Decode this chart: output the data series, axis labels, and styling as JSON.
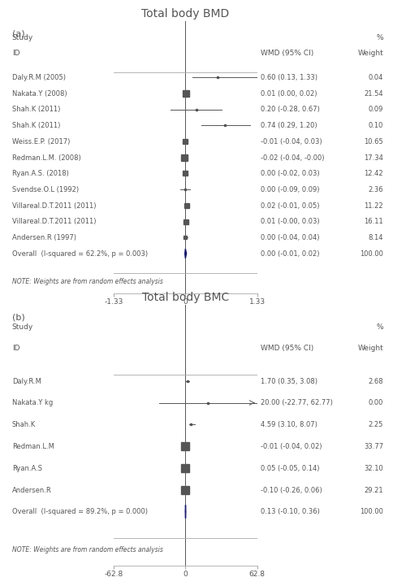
{
  "panel_a": {
    "title": "Total body BMD",
    "label": "(a)",
    "studies": [
      {
        "id": "Daly.R.M (2005)",
        "wmd": 0.6,
        "ci_lo": 0.13,
        "ci_hi": 1.33,
        "weight": 0.04,
        "ci_text": "0.60 (0.13, 1.33)",
        "wt_text": "0.04"
      },
      {
        "id": "Nakata.Y (2008)",
        "wmd": 0.01,
        "ci_lo": 0.0,
        "ci_hi": 0.02,
        "weight": 21.54,
        "ci_text": "0.01 (0.00, 0.02)",
        "wt_text": "21.54"
      },
      {
        "id": "Shah.K (2011)",
        "wmd": 0.2,
        "ci_lo": -0.28,
        "ci_hi": 0.67,
        "weight": 0.09,
        "ci_text": "0.20 (-0.28, 0.67)",
        "wt_text": "0.09"
      },
      {
        "id": "Shah.K (2011)",
        "wmd": 0.74,
        "ci_lo": 0.29,
        "ci_hi": 1.2,
        "weight": 0.1,
        "ci_text": "0.74 (0.29, 1.20)",
        "wt_text": "0.10"
      },
      {
        "id": "Weiss.E.P. (2017)",
        "wmd": -0.01,
        "ci_lo": -0.04,
        "ci_hi": 0.03,
        "weight": 10.65,
        "ci_text": "-0.01 (-0.04, 0.03)",
        "wt_text": "10.65"
      },
      {
        "id": "Redman.L.M. (2008)",
        "wmd": -0.02,
        "ci_lo": -0.04,
        "ci_hi": -0.0,
        "weight": 17.34,
        "ci_text": "-0.02 (-0.04, -0.00)",
        "wt_text": "17.34"
      },
      {
        "id": "Ryan.A.S. (2018)",
        "wmd": 0.0,
        "ci_lo": -0.02,
        "ci_hi": 0.03,
        "weight": 12.42,
        "ci_text": "0.00 (-0.02, 0.03)",
        "wt_text": "12.42"
      },
      {
        "id": "Svendse.O.L (1992)",
        "wmd": 0.0,
        "ci_lo": -0.09,
        "ci_hi": 0.09,
        "weight": 2.36,
        "ci_text": "0.00 (-0.09, 0.09)",
        "wt_text": "2.36"
      },
      {
        "id": "Villareal.D.T.2011 (2011)",
        "wmd": 0.02,
        "ci_lo": -0.01,
        "ci_hi": 0.05,
        "weight": 11.22,
        "ci_text": "0.02 (-0.01, 0.05)",
        "wt_text": "11.22"
      },
      {
        "id": "Villareal.D.T.2011 (2011)",
        "wmd": 0.01,
        "ci_lo": -0.0,
        "ci_hi": 0.03,
        "weight": 16.11,
        "ci_text": "0.01 (-0.00, 0.03)",
        "wt_text": "16.11"
      },
      {
        "id": "Andersen.R (1997)",
        "wmd": 0.0,
        "ci_lo": -0.04,
        "ci_hi": 0.04,
        "weight": 8.14,
        "ci_text": "0.00 (-0.04, 0.04)",
        "wt_text": "8.14"
      },
      {
        "id": "Overall  (I-squared = 62.2%, p = 0.003)",
        "wmd": 0.0,
        "ci_lo": -0.01,
        "ci_hi": 0.02,
        "weight": 100.0,
        "ci_text": "0.00 (-0.01, 0.02)",
        "wt_text": "100.00",
        "is_overall": true
      }
    ],
    "note": "NOTE: Weights are from random effects analysis",
    "xlim": [
      -1.33,
      1.33
    ],
    "xticks": [
      -1.33,
      0,
      1.33
    ],
    "xticklabels": [
      "-1.33",
      "0",
      "1.33"
    ]
  },
  "panel_b": {
    "title": "Total body BMC",
    "label": "(b)",
    "studies": [
      {
        "id": "Daly.R.M",
        "wmd": 1.7,
        "ci_lo": 0.35,
        "ci_hi": 3.08,
        "weight": 2.68,
        "ci_text": "1.70 (0.35, 3.08)",
        "wt_text": "2.68"
      },
      {
        "id": "Nakata.Y kg",
        "wmd": 20.0,
        "ci_lo": -22.77,
        "ci_hi": 62.77,
        "weight": 0.0,
        "ci_text": "20.00 (-22.77, 62.77)",
        "wt_text": "0.00",
        "arrow": true
      },
      {
        "id": "Shah.K",
        "wmd": 4.59,
        "ci_lo": 3.1,
        "ci_hi": 8.07,
        "weight": 2.25,
        "ci_text": "4.59 (3.10, 8.07)",
        "wt_text": "2.25"
      },
      {
        "id": "Redman.L.M",
        "wmd": -0.01,
        "ci_lo": -0.04,
        "ci_hi": 0.02,
        "weight": 33.77,
        "ci_text": "-0.01 (-0.04, 0.02)",
        "wt_text": "33.77"
      },
      {
        "id": "Ryan.A.S",
        "wmd": 0.05,
        "ci_lo": -0.05,
        "ci_hi": 0.14,
        "weight": 32.1,
        "ci_text": "0.05 (-0.05, 0.14)",
        "wt_text": "32.10"
      },
      {
        "id": "Andersen.R",
        "wmd": -0.1,
        "ci_lo": -0.26,
        "ci_hi": 0.06,
        "weight": 29.21,
        "ci_text": "-0.10 (-0.26, 0.06)",
        "wt_text": "29.21"
      },
      {
        "id": "Overall  (I-squared = 89.2%, p = 0.000)",
        "wmd": 0.13,
        "ci_lo": -0.1,
        "ci_hi": 0.36,
        "weight": 100.0,
        "ci_text": "0.13 (-0.10, 0.36)",
        "wt_text": "100.00",
        "is_overall": true
      }
    ],
    "note": "NOTE: Weights are from random effects analysis",
    "xlim": [
      -62.8,
      62.8
    ],
    "xticks": [
      -62.8,
      0,
      62.8
    ],
    "xticklabels": [
      "-62.8",
      "0",
      "62.8"
    ]
  },
  "colors": {
    "text": "#555555",
    "line": "#555555",
    "diamond": "#1a1a6e",
    "ci_line": "#555555",
    "marker": "#555555",
    "header_line": "#aaaaaa",
    "overall_diamond": "#1a1a6e"
  },
  "fontsize": {
    "title": 10,
    "panel_label": 8,
    "study": 6,
    "header": 6.5,
    "note": 5.5,
    "tick": 6.5
  }
}
